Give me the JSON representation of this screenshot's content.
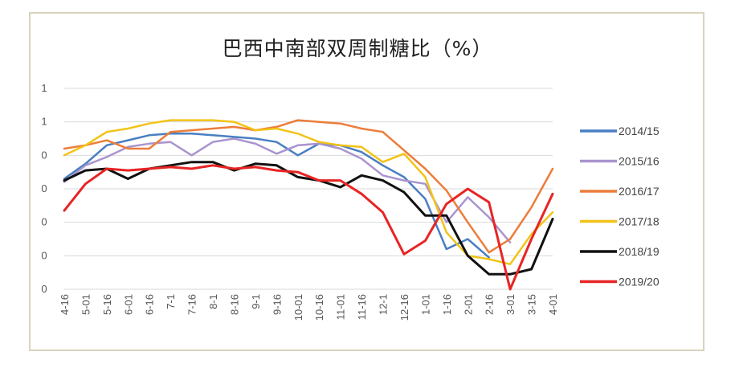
{
  "chart_data": {
    "type": "line",
    "title": "巴西中南部双周制糖比（%）",
    "xlabel": "",
    "ylabel": "",
    "y_tick_labels": [
      "1",
      "1",
      "0",
      "0",
      "0",
      "0",
      "0"
    ],
    "ylim": [
      0,
      6
    ],
    "grid": true,
    "legend_position": "right",
    "categories": [
      "4-16",
      "5-01",
      "5-16",
      "6-01",
      "6-16",
      "7-1",
      "7-16",
      "8-1",
      "8-16",
      "9-1",
      "9-16",
      "10-01",
      "10-16",
      "11-01",
      "11-16",
      "12-1",
      "12-16",
      "1-01",
      "1-16",
      "2-01",
      "2-16",
      "3-01",
      "3-15",
      "4-01"
    ],
    "series": [
      {
        "name": "2014/15",
        "color": "#4a7fc1",
        "values": [
          3.3,
          3.75,
          4.3,
          4.45,
          4.6,
          4.65,
          4.65,
          4.6,
          4.55,
          4.5,
          4.4,
          4.0,
          4.35,
          4.3,
          4.1,
          3.7,
          3.35,
          2.7,
          1.2,
          1.5,
          0.95,
          null,
          null,
          null
        ]
      },
      {
        "name": "2015/16",
        "color": "#a994cf",
        "values": [
          3.2,
          3.7,
          3.95,
          4.25,
          4.35,
          4.4,
          4.0,
          4.4,
          4.5,
          4.35,
          4.05,
          4.3,
          4.35,
          4.2,
          3.9,
          3.4,
          3.25,
          3.15,
          2.0,
          2.75,
          2.15,
          1.4,
          null,
          null
        ]
      },
      {
        "name": "2016/17",
        "color": "#ec7d3a",
        "values": [
          4.2,
          4.3,
          4.45,
          4.2,
          4.2,
          4.7,
          4.75,
          4.8,
          4.85,
          4.75,
          4.85,
          5.05,
          5.0,
          4.95,
          4.8,
          4.7,
          4.15,
          3.6,
          2.95,
          2.0,
          1.1,
          1.5,
          2.45,
          3.6
        ]
      },
      {
        "name": "2017/18",
        "color": "#f2c318",
        "values": [
          4.0,
          4.3,
          4.7,
          4.8,
          4.95,
          5.05,
          5.05,
          5.05,
          5.0,
          4.75,
          4.8,
          4.65,
          4.4,
          4.3,
          4.25,
          3.8,
          4.05,
          3.35,
          1.7,
          1.0,
          0.9,
          0.75,
          1.65,
          2.3
        ]
      },
      {
        "name": "2018/19",
        "color": "#111111",
        "values": [
          3.25,
          3.55,
          3.6,
          3.3,
          3.6,
          3.7,
          3.8,
          3.8,
          3.55,
          3.75,
          3.7,
          3.35,
          3.25,
          3.05,
          3.4,
          3.25,
          2.9,
          2.2,
          2.2,
          1.0,
          0.45,
          0.45,
          0.6,
          2.1
        ]
      },
      {
        "name": "2019/20",
        "color": "#e82424",
        "values": [
          2.35,
          3.15,
          3.6,
          3.55,
          3.6,
          3.65,
          3.6,
          3.7,
          3.6,
          3.65,
          3.55,
          3.5,
          3.25,
          3.25,
          2.85,
          2.3,
          1.05,
          1.45,
          2.55,
          3.0,
          2.6,
          0.0,
          1.5,
          2.85
        ]
      }
    ]
  }
}
